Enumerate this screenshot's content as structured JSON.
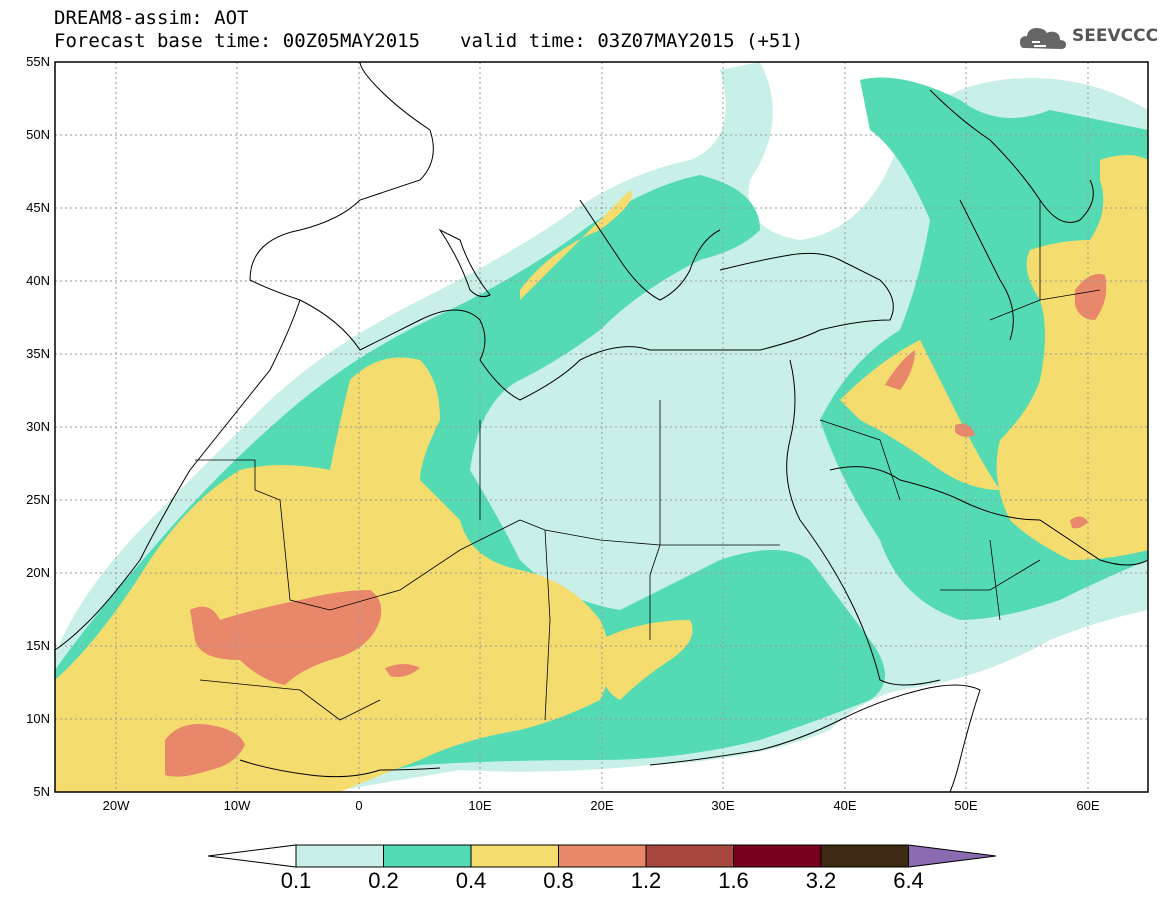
{
  "title": {
    "line1": "DREAM8-assim: AOT",
    "base": "Forecast base time: 00Z05MAY2015",
    "valid": "valid time: 03Z07MAY2015 (+51)"
  },
  "logo": {
    "text": "SEEVCCC",
    "icon": "cloud-icon"
  },
  "axes": {
    "lat_labels": [
      "55N",
      "50N",
      "45N",
      "40N",
      "35N",
      "30N",
      "25N",
      "20N",
      "15N",
      "10N",
      "5N"
    ],
    "lon_labels": [
      "20W",
      "10W",
      "0",
      "10E",
      "20E",
      "30E",
      "40E",
      "50E",
      "60E"
    ]
  },
  "colorbar": {
    "levels": [
      "0.1",
      "0.2",
      "0.4",
      "0.8",
      "1.2",
      "1.6",
      "3.2",
      "6.4"
    ],
    "colors": [
      "#ffffff",
      "#c8f0e8",
      "#55dbb4",
      "#f5dc6e",
      "#e8876a",
      "#a8473e",
      "#78001e",
      "#3e2a14",
      "#8a6ab0"
    ]
  },
  "map_region": {
    "lon_range": [
      -25,
      65
    ],
    "lat_range": [
      5,
      55
    ]
  }
}
